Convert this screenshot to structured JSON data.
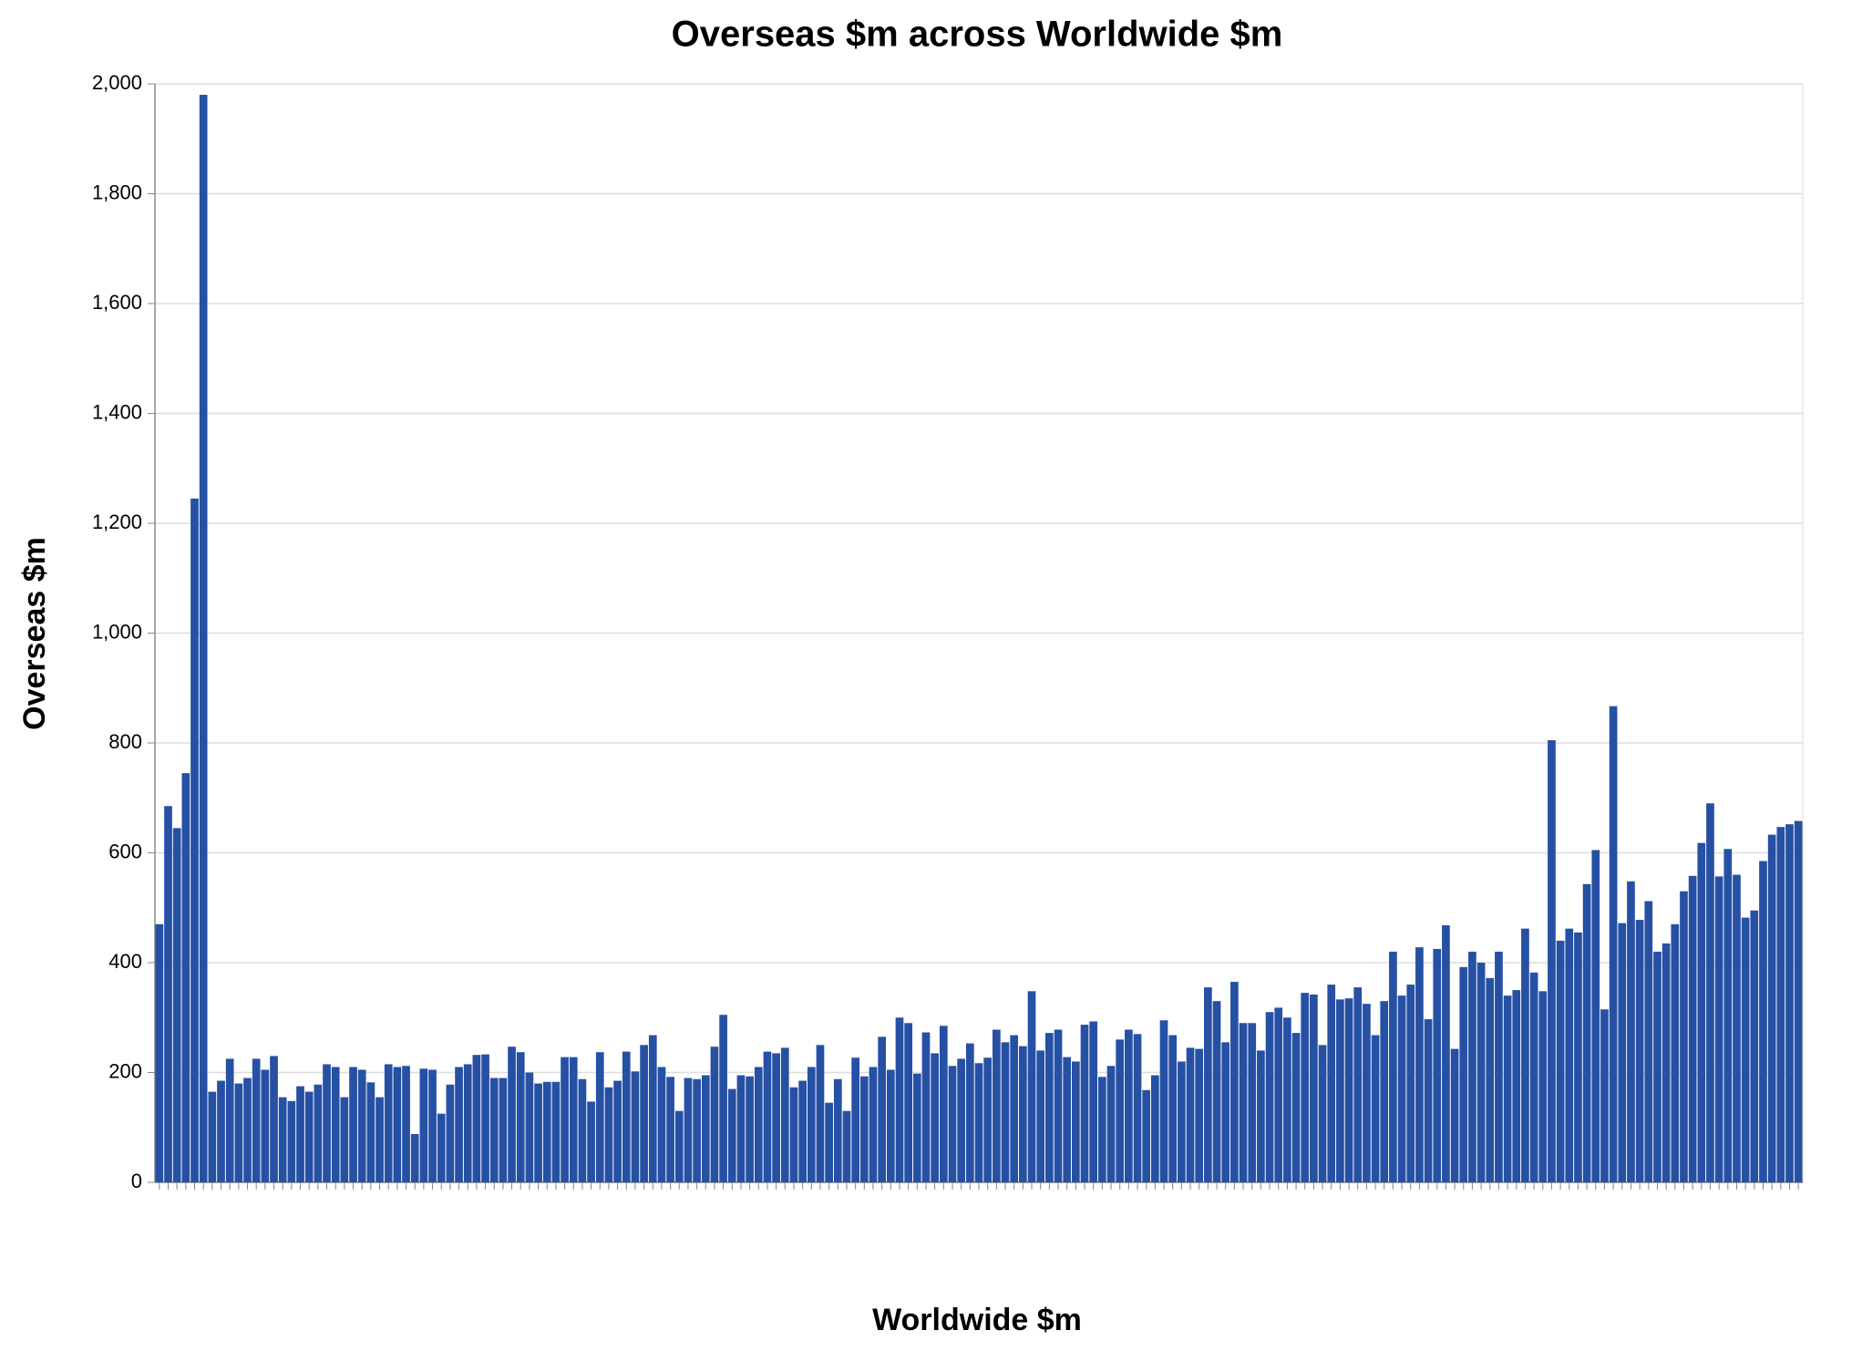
{
  "chart_data": {
    "type": "bar",
    "title": "Overseas $m across Worldwide $m",
    "x_label": "Worldwide $m",
    "y_label": "Overseas $m",
    "categories": [
      null,
      null,
      null,
      null,
      null,
      null,
      null,
      null,
      null,
      null,
      null,
      null,
      null,
      null,
      null,
      null,
      null,
      null,
      null,
      null,
      null,
      null,
      null,
      null,
      null,
      null,
      null,
      null,
      null,
      null,
      null,
      null,
      null,
      null,
      null,
      null,
      null,
      null,
      null,
      null,
      null,
      null,
      null,
      null,
      null,
      null,
      null,
      null,
      null,
      null,
      null,
      null,
      null,
      null,
      null,
      null,
      null,
      null,
      null,
      null,
      null,
      null,
      null,
      null,
      null,
      null,
      null,
      null,
      null,
      null,
      null,
      null,
      null,
      null,
      null,
      null,
      null,
      null,
      null,
      null,
      null,
      null,
      null,
      null,
      null,
      null,
      null,
      null,
      null,
      null,
      null,
      null,
      null,
      null,
      null,
      null,
      null,
      null,
      null,
      null,
      null,
      null,
      null,
      null,
      null,
      null,
      null,
      null,
      null,
      null,
      null,
      null,
      null,
      null,
      null,
      null,
      null,
      null,
      null,
      null,
      null,
      null,
      null,
      null,
      null,
      null,
      null,
      null,
      null,
      null,
      null,
      null,
      null,
      null,
      null,
      null,
      null,
      null,
      null,
      null,
      null,
      null,
      null,
      null,
      null,
      null,
      null,
      null,
      null,
      null,
      null,
      null,
      null,
      null,
      null,
      null,
      null,
      null,
      null,
      null,
      null,
      null,
      null,
      null,
      null,
      null,
      null,
      null,
      null,
      null,
      null,
      null,
      null,
      null,
      null,
      null,
      null,
      null,
      null,
      null,
      null,
      null,
      null,
      null,
      null,
      null,
      null
    ],
    "values": [
      470,
      685,
      645,
      745,
      1245,
      1980,
      165,
      185,
      225,
      180,
      190,
      225,
      205,
      230,
      155,
      148,
      175,
      165,
      178,
      215,
      210,
      155,
      210,
      205,
      182,
      155,
      215,
      210,
      212,
      88,
      207,
      205,
      125,
      178,
      210,
      215,
      232,
      233,
      190,
      190,
      247,
      237,
      200,
      180,
      183,
      183,
      228,
      228,
      188,
      147,
      237,
      173,
      185,
      238,
      202,
      250,
      268,
      210,
      192,
      130,
      190,
      188,
      195,
      247,
      305,
      170,
      195,
      193,
      210,
      238,
      235,
      245,
      173,
      185,
      210,
      250,
      145,
      188,
      130,
      227,
      193,
      210,
      265,
      205,
      300,
      290,
      198,
      273,
      235,
      285,
      212,
      225,
      253,
      217,
      227,
      278,
      255,
      268,
      248,
      348,
      240,
      272,
      278,
      228,
      220,
      287,
      293,
      192,
      212,
      260,
      278,
      270,
      168,
      195,
      295,
      268,
      220,
      245,
      243,
      355,
      330,
      255,
      365,
      290,
      290,
      240,
      310,
      318,
      300,
      272,
      345,
      342,
      250,
      360,
      333,
      335,
      355,
      325,
      268,
      330,
      420,
      340,
      360,
      428,
      297,
      425,
      468,
      243,
      392,
      420,
      400,
      372,
      420,
      340,
      350,
      462,
      382,
      348,
      805,
      440,
      462,
      455,
      543,
      605,
      315,
      867,
      472,
      548,
      478,
      512,
      420,
      435,
      470,
      530,
      558,
      618,
      690,
      557,
      607,
      560,
      482,
      495,
      585,
      633,
      647,
      652,
      658
    ],
    "color": "#2650a4",
    "ylim": [
      0,
      2000
    ],
    "yticks": [
      0,
      200,
      400,
      600,
      800,
      {
        "value": 1000,
        "label": "1,000"
      },
      {
        "value": 1200,
        "label": "1,200"
      },
      {
        "value": 1400,
        "label": "1,400"
      },
      {
        "value": 1600,
        "label": "1,600"
      },
      {
        "value": 1800,
        "label": "1,800"
      },
      {
        "value": 2000,
        "label": "2,000"
      }
    ],
    "grid": true
  }
}
